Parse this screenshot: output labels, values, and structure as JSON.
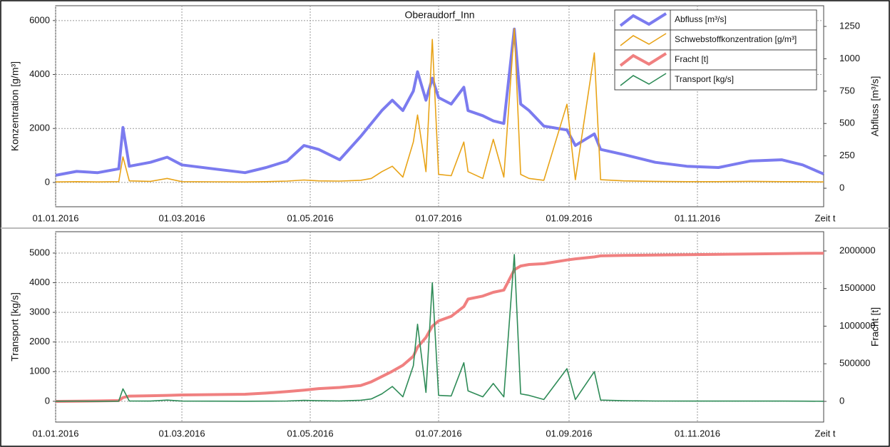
{
  "chart_data": [
    {
      "type": "line",
      "title": "Oberaudorf_Inn",
      "ylabel": "Konzentration [g/m³]",
      "y2label": "Abfluss [m³/s]",
      "xlabel": "Zeit t",
      "x": [
        "01.01.2016",
        "11.01.2016",
        "21.01.2016",
        "31.01.2016",
        "02.02.2016",
        "05.02.2016",
        "15.02.2016",
        "23.02.2016",
        "01.03.2016",
        "16.03.2016",
        "31.03.2016",
        "10.04.2016",
        "20.04.2016",
        "28.04.2016",
        "05.05.2016",
        "15.05.2016",
        "25.05.2016",
        "30.05.2016",
        "04.06.2016",
        "09.06.2016",
        "14.06.2016",
        "19.06.2016",
        "21.06.2016",
        "25.06.2016",
        "28.06.2016",
        "01.07.2016",
        "07.07.2016",
        "13.07.2016",
        "15.07.2016",
        "22.07.2016",
        "27.07.2016",
        "01.08.2016",
        "06.08.2016",
        "09.08.2016",
        "13.08.2016",
        "20.08.2016",
        "31.08.2016",
        "04.09.2016",
        "13.09.2016",
        "16.09.2016",
        "27.09.2016",
        "12.10.2016",
        "27.10.2016",
        "11.11.2016",
        "26.11.2016",
        "11.12.2016",
        "21.12.2016",
        "31.12.2016"
      ],
      "xlim": [
        "01.01.2016",
        "31.12.2016"
      ],
      "xticks": [
        "01.01.2016",
        "01.03.2016",
        "01.05.2016",
        "01.07.2016",
        "01.09.2016",
        "01.11.2016"
      ],
      "ylim": [
        -900,
        6550
      ],
      "yticks": [
        0,
        2000,
        4000,
        6000
      ],
      "y2lim": [
        -143,
        1410
      ],
      "y2ticks": [
        0,
        250,
        500,
        750,
        1000,
        1250
      ],
      "grid": true,
      "legend": "upper right",
      "series": [
        {
          "name": "Abfluss [m³/s]",
          "color": "#7b7bef",
          "axis": "y2",
          "values": [
            100,
            130,
            120,
            150,
            470,
            170,
            200,
            240,
            180,
            150,
            120,
            160,
            210,
            330,
            300,
            220,
            400,
            500,
            600,
            680,
            600,
            750,
            900,
            680,
            850,
            700,
            650,
            780,
            600,
            560,
            520,
            500,
            1230,
            650,
            600,
            480,
            450,
            330,
            420,
            300,
            260,
            200,
            170,
            160,
            210,
            220,
            180,
            110
          ]
        },
        {
          "name": "Schwebstoffkonzentration [g/m³]",
          "color": "#e8a317",
          "values": [
            20,
            30,
            20,
            30,
            950,
            60,
            40,
            150,
            30,
            25,
            20,
            30,
            50,
            90,
            60,
            50,
            80,
            150,
            400,
            600,
            200,
            1500,
            2500,
            400,
            5300,
            300,
            250,
            1500,
            400,
            150,
            1600,
            200,
            5700,
            300,
            150,
            80,
            2900,
            100,
            4800,
            100,
            60,
            40,
            30,
            30,
            40,
            30,
            30,
            20
          ]
        }
      ]
    },
    {
      "type": "line",
      "ylabel": "Transport [kg/s]",
      "y2label": "Fracht [t]",
      "xlabel": "Zeit t",
      "x": [
        "01.01.2016",
        "11.01.2016",
        "21.01.2016",
        "31.01.2016",
        "02.02.2016",
        "05.02.2016",
        "15.02.2016",
        "23.02.2016",
        "01.03.2016",
        "16.03.2016",
        "31.03.2016",
        "10.04.2016",
        "20.04.2016",
        "28.04.2016",
        "05.05.2016",
        "15.05.2016",
        "25.05.2016",
        "30.05.2016",
        "04.06.2016",
        "09.06.2016",
        "14.06.2016",
        "19.06.2016",
        "21.06.2016",
        "25.06.2016",
        "28.06.2016",
        "01.07.2016",
        "07.07.2016",
        "13.07.2016",
        "15.07.2016",
        "22.07.2016",
        "27.07.2016",
        "01.08.2016",
        "06.08.2016",
        "09.08.2016",
        "13.08.2016",
        "20.08.2016",
        "31.08.2016",
        "04.09.2016",
        "13.09.2016",
        "16.09.2016",
        "27.09.2016",
        "12.10.2016",
        "27.10.2016",
        "11.11.2016",
        "26.11.2016",
        "11.12.2016",
        "21.12.2016",
        "31.12.2016"
      ],
      "xlim": [
        "01.01.2016",
        "31.12.2016"
      ],
      "xticks": [
        "01.01.2016",
        "01.03.2016",
        "01.05.2016",
        "01.07.2016",
        "01.09.2016",
        "01.11.2016"
      ],
      "ylim": [
        -700,
        5720
      ],
      "yticks": [
        0,
        1000,
        2000,
        3000,
        4000,
        5000
      ],
      "y2lim": [
        -275000,
        2256000
      ],
      "y2ticks": [
        0,
        500000,
        1000000,
        1500000,
        2000000
      ],
      "grid": true,
      "series": [
        {
          "name": "Fracht [t]",
          "color": "#f08080",
          "axis": "y2",
          "values": [
            0,
            3000,
            6000,
            10000,
            50000,
            70000,
            75000,
            80000,
            85000,
            90000,
            95000,
            110000,
            130000,
            150000,
            170000,
            185000,
            210000,
            260000,
            330000,
            400000,
            480000,
            600000,
            720000,
            850000,
            1000000,
            1070000,
            1130000,
            1260000,
            1360000,
            1400000,
            1450000,
            1480000,
            1750000,
            1800000,
            1820000,
            1830000,
            1880000,
            1895000,
            1920000,
            1935000,
            1940000,
            1945000,
            1950000,
            1955000,
            1960000,
            1965000,
            1968000,
            1970000
          ]
        },
        {
          "name": "Transport [kg/s]",
          "color": "#2e8b57",
          "values": [
            2,
            4,
            3,
            5,
            420,
            10,
            8,
            40,
            6,
            4,
            3,
            5,
            10,
            30,
            20,
            12,
            35,
            80,
            250,
            500,
            150,
            1200,
            2600,
            300,
            4000,
            200,
            180,
            1300,
            350,
            150,
            600,
            150,
            4950,
            250,
            200,
            60,
            1100,
            60,
            1000,
            40,
            20,
            10,
            8,
            6,
            8,
            6,
            5,
            3
          ]
        }
      ]
    }
  ]
}
